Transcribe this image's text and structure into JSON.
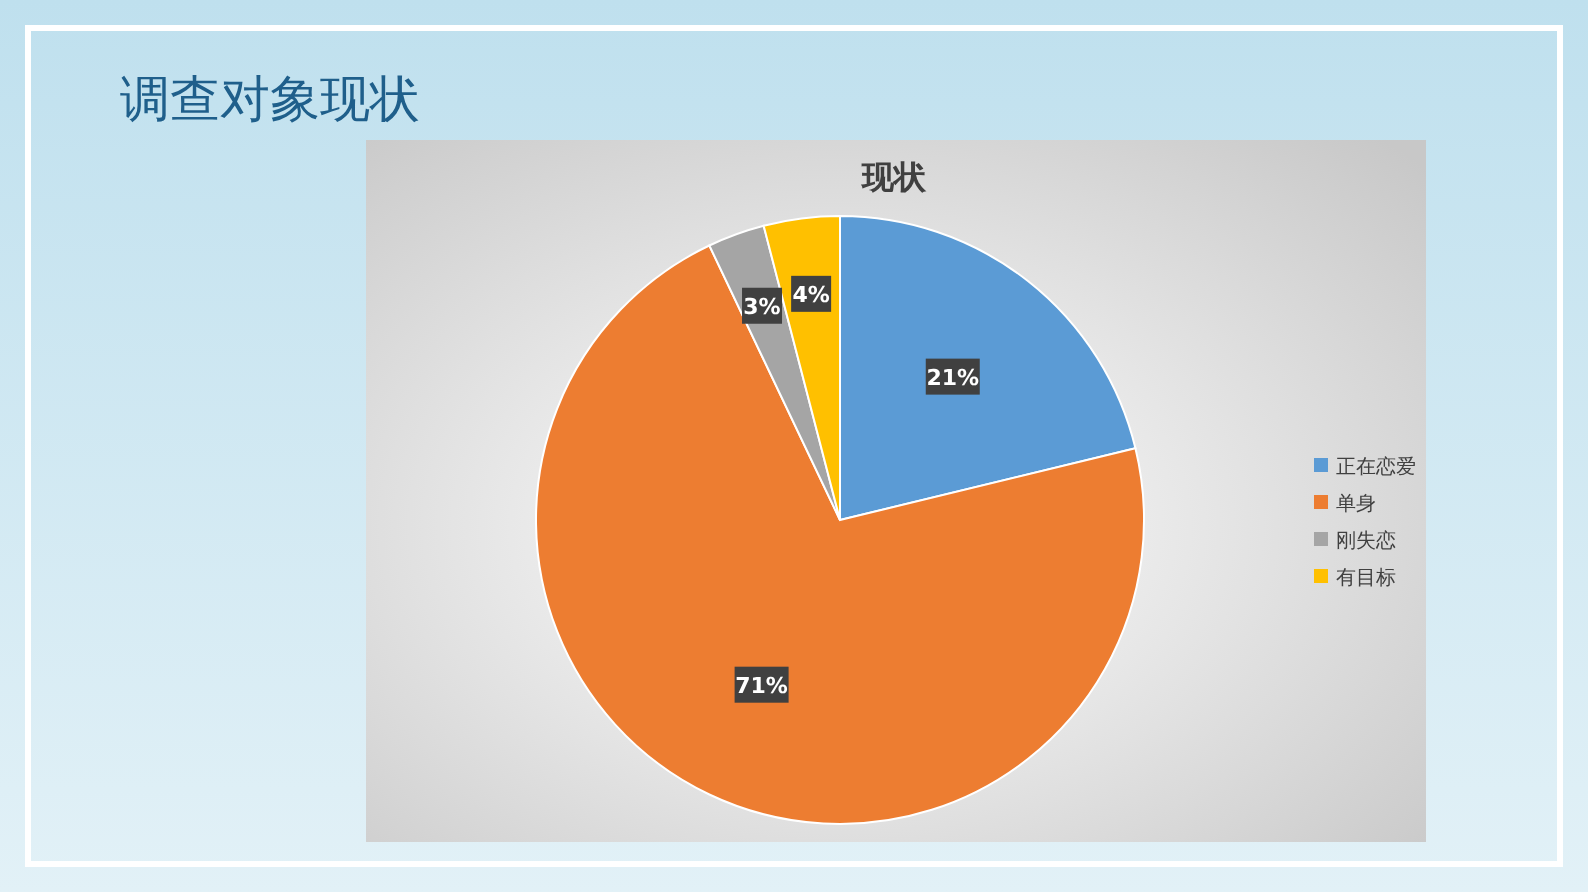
{
  "chart_data": {
    "type": "pie",
    "title": "现状",
    "categories": [
      "正在恋爱",
      "单身",
      "刚失恋",
      "有目标"
    ],
    "values": [
      21,
      71,
      3,
      4
    ],
    "colors": [
      "#5b9bd5",
      "#ed7d31",
      "#a5a5a5",
      "#ffc000"
    ],
    "value_labels": [
      "21%",
      "71%",
      "3%",
      "4%"
    ],
    "legend": "right",
    "annotations": [
      "调查对象现状"
    ]
  }
}
